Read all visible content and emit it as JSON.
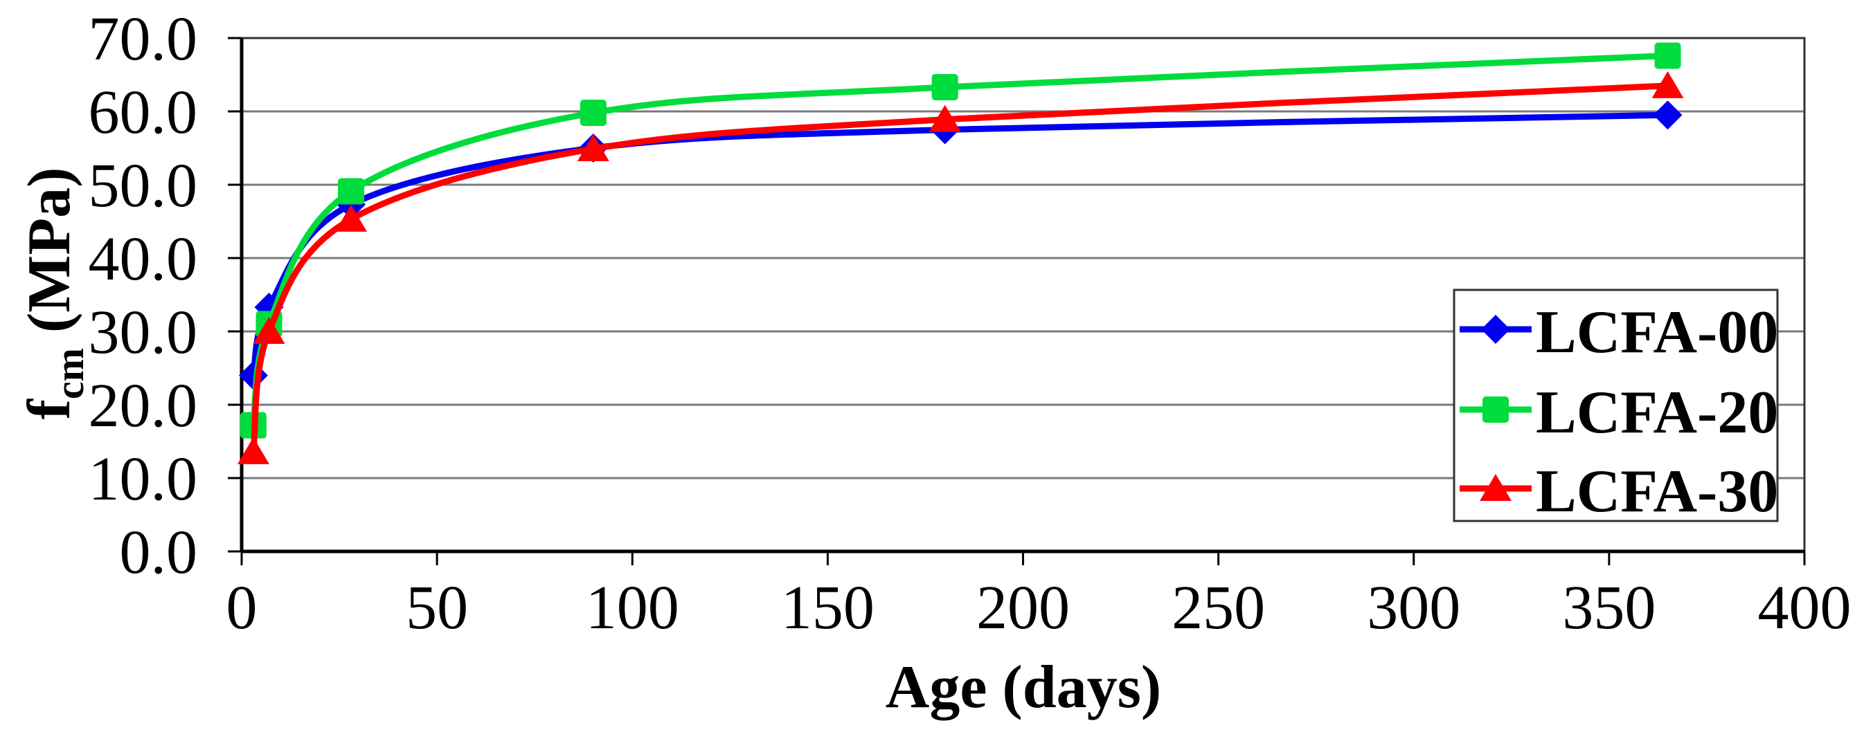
{
  "chart_data": {
    "type": "line",
    "title": "",
    "xlabel": "Age (days)",
    "ylabel": "fcm (MPa)",
    "ylabel_parts": [
      {
        "t": "f",
        "sub": false
      },
      {
        "t": "cm",
        "sub": true
      },
      {
        "t": " (MPa)",
        "sub": false
      }
    ],
    "xlim": [
      0,
      400
    ],
    "ylim": [
      0,
      70
    ],
    "x_ticks": [
      0,
      50,
      100,
      150,
      200,
      250,
      300,
      350,
      400
    ],
    "x_tick_labels": [
      "0",
      "50",
      "100",
      "150",
      "200",
      "250",
      "300",
      "350",
      "400"
    ],
    "y_ticks": [
      0,
      10,
      20,
      30,
      40,
      50,
      60,
      70
    ],
    "y_tick_labels": [
      "0.0",
      "10.0",
      "20.0",
      "30.0",
      "40.0",
      "50.0",
      "60.0",
      "70.0"
    ],
    "grid": "horizontal",
    "legend": {
      "position": "inside-right",
      "border": true
    },
    "x": [
      3,
      7,
      28,
      90,
      180,
      365
    ],
    "series": [
      {
        "name": "LCFA-00",
        "marker": "diamond",
        "color": "#0000EE",
        "values": [
          24.0,
          33.3,
          47.3,
          55.0,
          57.5,
          59.5
        ]
      },
      {
        "name": "LCFA-20",
        "marker": "square",
        "color": "#00DC3C",
        "values": [
          17.2,
          31.0,
          49.1,
          59.8,
          63.3,
          67.6
        ]
      },
      {
        "name": "LCFA-30",
        "marker": "triangle",
        "color": "#FF0000",
        "values": [
          13.6,
          30.0,
          45.3,
          54.9,
          58.9,
          63.5
        ]
      }
    ],
    "colors": {
      "axis": "#000000",
      "grid": "#7A7A7A",
      "plot_border": "#333333",
      "background": "#FFFFFF",
      "text": "#000000"
    }
  }
}
